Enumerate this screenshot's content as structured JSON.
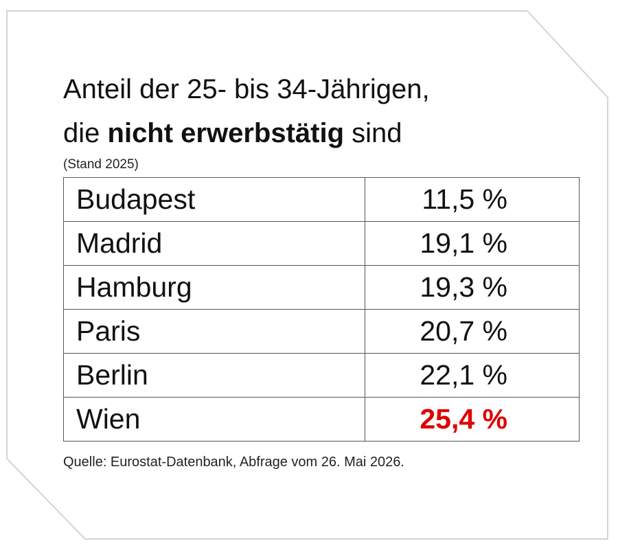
{
  "header": {
    "title_line1": "Anteil der 25- bis 34-Jährigen,",
    "title_line2_prefix": "die",
    "title_line2_bold": "nicht erwerbstätig",
    "title_line2_suffix": "sind",
    "subtitle": "(Stand 2025)"
  },
  "table": {
    "rows": [
      {
        "city": "Budapest",
        "value": "11,5 %"
      },
      {
        "city": "Madrid",
        "value": "19,1 %"
      },
      {
        "city": "Hamburg",
        "value": "19,3 %"
      },
      {
        "city": "Paris",
        "value": "20,7 %"
      },
      {
        "city": "Berlin",
        "value": "22,1 %"
      },
      {
        "city": "Wien",
        "value": "25,4 %"
      }
    ]
  },
  "footer": {
    "source": "Quelle: Eurostat-Datenbank, Abfrage vom 26. Mai 2026."
  },
  "colors": {
    "highlight": "#e00000",
    "text": "#111111",
    "card_background": "#ffffff",
    "card_border": "#d4d4d4"
  },
  "chart_data": {
    "type": "table",
    "title": "Anteil der 25- bis 34-Jährigen, die nicht erwerbstätig sind",
    "subtitle": "(Stand 2025)",
    "unit": "%",
    "categories": [
      "Budapest",
      "Madrid",
      "Hamburg",
      "Paris",
      "Berlin",
      "Wien"
    ],
    "values": [
      11.5,
      19.1,
      19.3,
      20.7,
      22.1,
      25.4
    ],
    "highlighted_category": "Wien",
    "highlight_color": "#e00000",
    "source": "Quelle: Eurostat-Datenbank, Abfrage vom 26. Mai 2026."
  }
}
